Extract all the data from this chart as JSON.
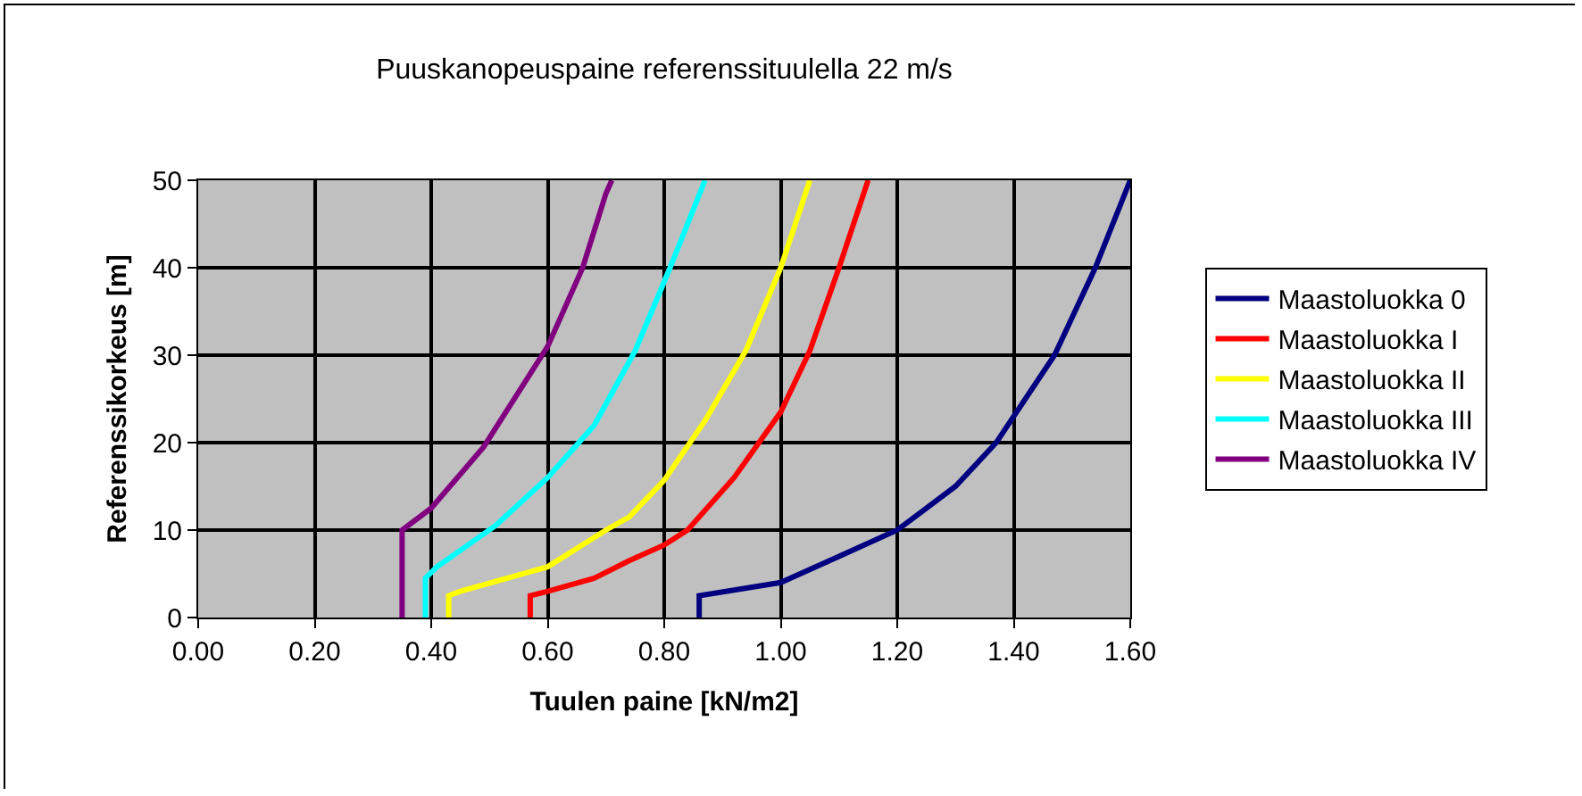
{
  "chart_data": {
    "type": "line",
    "title": "Puuskanopeuspaine referenssituulella 22 m/s",
    "xlabel": "Tuulen paine [kN/m2]",
    "ylabel": "Referenssikorkeus [m]",
    "xlim": [
      0,
      1.6
    ],
    "ylim": [
      0,
      50
    ],
    "xticks": [
      {
        "value": 0,
        "label": "0.00"
      },
      {
        "value": 0.2,
        "label": "0.20"
      },
      {
        "value": 0.4,
        "label": "0.40"
      },
      {
        "value": 0.6,
        "label": "0.60"
      },
      {
        "value": 0.8,
        "label": "0.80"
      },
      {
        "value": 1.0,
        "label": "1.00"
      },
      {
        "value": 1.2,
        "label": "1.20"
      },
      {
        "value": 1.4,
        "label": "1.40"
      },
      {
        "value": 1.6,
        "label": "1.60"
      }
    ],
    "yticks": [
      0,
      10,
      20,
      30,
      40,
      50
    ],
    "grid": true,
    "legend": "right",
    "series": [
      {
        "name": "Maastoluokka 0",
        "color": "#000080",
        "x": [
          0.86,
          0.86,
          1.0,
          1.1,
          1.2,
          1.3,
          1.37,
          1.47,
          1.54,
          1.6
        ],
        "values": [
          0,
          2.5,
          4,
          7,
          10,
          15,
          20,
          30,
          40,
          50
        ]
      },
      {
        "name": "Maastoluokka I",
        "color": "#ff0000",
        "x": [
          0.57,
          0.57,
          0.6,
          0.68,
          0.74,
          0.8,
          0.84,
          0.92,
          1.0,
          1.05,
          1.1,
          1.15
        ],
        "values": [
          0,
          2.5,
          3,
          4.5,
          6.5,
          8.3,
          10,
          16,
          23.5,
          30.5,
          40,
          50
        ]
      },
      {
        "name": "Maastoluokka II",
        "color": "#ffff00",
        "x": [
          0.43,
          0.43,
          0.45,
          0.6,
          0.7,
          0.74,
          0.8,
          0.87,
          0.94,
          1.0,
          1.05
        ],
        "values": [
          0,
          2.5,
          3,
          5.8,
          10,
          11.5,
          15.7,
          22.5,
          30.5,
          40,
          50
        ]
      },
      {
        "name": "Maastoluokka III",
        "color": "#00ffff",
        "x": [
          0.39,
          0.39,
          0.41,
          0.51,
          0.6,
          0.68,
          0.75,
          0.81,
          0.87
        ],
        "values": [
          0,
          4.5,
          5.8,
          10.5,
          16,
          22,
          30.5,
          40,
          50
        ]
      },
      {
        "name": "Maastoluokka IV",
        "color": "#800080",
        "x": [
          0.35,
          0.35,
          0.4,
          0.49,
          0.6,
          0.66,
          0.7,
          0.71
        ],
        "values": [
          0,
          10,
          12.5,
          19.5,
          31,
          40,
          48.5,
          50
        ]
      }
    ]
  }
}
